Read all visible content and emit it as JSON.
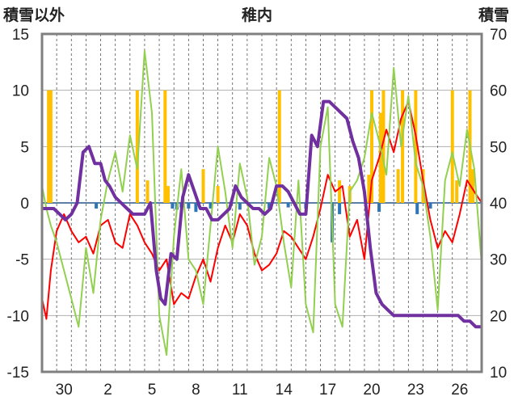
{
  "chart_data": {
    "type": "line",
    "title": "稚内",
    "ylabel_left": "積雪以外",
    "ylabel_right": "積雪",
    "x_tick_labels": [
      "30",
      "2",
      "5",
      "8",
      "11",
      "14",
      "17",
      "20",
      "23",
      "26"
    ],
    "x_range": [
      0,
      30
    ],
    "x_tick_positions": [
      1.5,
      4.5,
      7.5,
      10.5,
      13.5,
      16.5,
      19.5,
      22.5,
      25.5,
      28.5
    ],
    "ylim_left": [
      -15,
      15
    ],
    "yticks_left": [
      -15,
      -10,
      -5,
      0,
      5,
      10,
      15
    ],
    "ylim_right": [
      10,
      70
    ],
    "yticks_right": [
      10,
      20,
      30,
      40,
      50,
      60,
      70
    ],
    "grid": true,
    "series": [
      {
        "key": "precip_positive",
        "type": "bar",
        "axis": "left",
        "color": "#ffc000",
        "x": [
          0.45,
          0.6,
          6.5,
          7.2,
          8.4,
          8.6,
          11.0,
          12.0,
          16.2,
          20.3,
          21.0,
          22.3,
          22.5,
          23.1,
          23.3,
          24.3,
          24.6,
          25.5,
          26.0,
          28.0,
          28.3,
          29.2,
          29.4
        ],
        "values": [
          10,
          10,
          10,
          2.0,
          10,
          1.5,
          3.0,
          1.5,
          10,
          2.0,
          1.5,
          2.5,
          10,
          8.0,
          10,
          3.0,
          10,
          10,
          3.0,
          10,
          2.0,
          10,
          3.0
        ]
      },
      {
        "key": "negative_bars",
        "type": "bar",
        "axis": "left",
        "color": "#2e75b6",
        "x": [
          3.7,
          8.9,
          9.2,
          9.5,
          10.0,
          10.5,
          11.5,
          13.5,
          15.5,
          16.8,
          18.0,
          19.8,
          20.3,
          23.0,
          25.6,
          26.5
        ],
        "values": [
          -0.5,
          -0.5,
          -0.6,
          -0.4,
          -0.5,
          -0.8,
          -0.5,
          -0.6,
          -0.5,
          -0.4,
          -0.5,
          -3.5,
          -1.0,
          -0.8,
          -1.0,
          -0.5
        ]
      },
      {
        "key": "red_line",
        "type": "line",
        "axis": "left",
        "color": "#ff0000",
        "x": [
          0,
          0.3,
          0.6,
          1.0,
          1.5,
          2.0,
          2.5,
          3.0,
          3.5,
          4.0,
          4.5,
          5.0,
          5.5,
          6.0,
          6.5,
          7.0,
          7.5,
          8.0,
          8.5,
          9.0,
          9.5,
          10.0,
          10.5,
          11.0,
          11.5,
          12.0,
          12.5,
          13.0,
          13.5,
          14.0,
          14.5,
          15.0,
          15.5,
          16.0,
          16.5,
          17.0,
          17.5,
          18.0,
          18.5,
          19.0,
          19.5,
          20.0,
          20.5,
          21.0,
          21.5,
          22.0,
          22.5,
          23.0,
          23.5,
          24.0,
          24.5,
          25.0,
          25.5,
          26.0,
          26.5,
          27.0,
          27.5,
          28.0,
          28.5,
          29.0,
          29.5,
          30.0
        ],
        "values": [
          -8.5,
          -10.3,
          -6.0,
          -2.5,
          -1.0,
          -2.5,
          -3.5,
          -3.0,
          -4.5,
          -2.0,
          -1.5,
          -3.5,
          -4.0,
          -1.0,
          -2.0,
          -3.5,
          -4.5,
          -6.0,
          -5.0,
          -9.0,
          -8.0,
          -8.5,
          -6.5,
          -5.0,
          -7.0,
          -4.0,
          -2.0,
          -3.5,
          -1.0,
          -2.0,
          -4.5,
          -6.0,
          -5.5,
          -4.5,
          -2.5,
          -3.0,
          -4.0,
          -5.0,
          -3.0,
          -0.5,
          2.5,
          1.0,
          1.5,
          -3.0,
          -1.5,
          -5.0,
          2.0,
          4.0,
          6.5,
          4.5,
          7.5,
          9.0,
          6.0,
          2.0,
          -1.5,
          -4.0,
          -2.5,
          -3.5,
          -1.0,
          2.0,
          1.0,
          0.0
        ]
      },
      {
        "key": "green_line",
        "type": "line",
        "axis": "left",
        "color": "#92d050",
        "x": [
          0,
          0.3,
          0.6,
          1.0,
          1.5,
          2.0,
          2.5,
          3.0,
          3.5,
          4.0,
          4.5,
          5.0,
          5.5,
          6.0,
          6.5,
          7.0,
          7.5,
          8.0,
          8.5,
          9.0,
          9.5,
          10.0,
          10.5,
          11.0,
          11.5,
          12.0,
          12.5,
          13.0,
          13.5,
          14.0,
          14.5,
          15.0,
          15.5,
          16.0,
          16.5,
          17.0,
          17.5,
          18.0,
          18.5,
          19.0,
          19.5,
          20.0,
          20.5,
          21.0,
          21.5,
          22.0,
          22.5,
          23.0,
          23.5,
          24.0,
          24.5,
          25.0,
          25.5,
          26.0,
          26.5,
          27.0,
          27.5,
          28.0,
          28.5,
          29.0,
          29.5,
          30.0
        ],
        "values": [
          1.5,
          -0.5,
          -2.0,
          -3.5,
          -6.0,
          -8.5,
          -11.0,
          -4.0,
          -8.0,
          -1.5,
          2.0,
          4.5,
          1.0,
          6.0,
          3.0,
          13.5,
          8.0,
          -10.0,
          -13.5,
          -3.0,
          3.0,
          -5.0,
          -6.0,
          -9.0,
          -2.0,
          5.0,
          1.0,
          -4.0,
          3.5,
          0.5,
          -5.5,
          -3.0,
          4.0,
          1.5,
          -3.5,
          -7.5,
          2.0,
          -9.0,
          -11.5,
          5.0,
          8.5,
          -9.0,
          -11.0,
          1.0,
          2.0,
          4.0,
          8.0,
          5.5,
          2.5,
          12.0,
          5.0,
          9.5,
          3.5,
          1.5,
          -3.0,
          -9.5,
          2.0,
          4.5,
          1.5,
          6.5,
          3.0,
          -5.5
        ]
      },
      {
        "key": "purple_line",
        "type": "line",
        "axis": "right",
        "color": "#7030a0",
        "x": [
          0,
          0.8,
          1.2,
          1.6,
          2.0,
          2.4,
          2.8,
          3.2,
          3.6,
          4.0,
          4.3,
          4.6,
          5.0,
          5.4,
          5.8,
          6.2,
          6.6,
          7.0,
          7.4,
          7.8,
          8.1,
          8.4,
          8.8,
          9.2,
          9.6,
          10.0,
          10.4,
          10.8,
          11.2,
          11.6,
          12.0,
          12.4,
          12.8,
          13.2,
          13.6,
          14.0,
          14.4,
          14.8,
          15.2,
          15.6,
          16.0,
          16.4,
          16.8,
          17.2,
          17.6,
          18.0,
          18.4,
          18.8,
          19.2,
          19.6,
          20.0,
          20.4,
          20.8,
          21.2,
          21.6,
          22.0,
          22.4,
          22.8,
          23.2,
          23.6,
          24.0,
          24.4,
          24.8,
          25.2,
          25.6,
          26.0,
          26.4,
          26.8,
          27.2,
          27.6,
          28.0,
          28.4,
          28.8,
          29.2,
          29.6,
          30.0
        ],
        "values": [
          39,
          39,
          38,
          37,
          38,
          40,
          49,
          50,
          47,
          47,
          44,
          43,
          41,
          40,
          39,
          38,
          38,
          38,
          40,
          28,
          23,
          22,
          31,
          30,
          41,
          45,
          42,
          39,
          39,
          37,
          37,
          38,
          39,
          43,
          41,
          40,
          39,
          39,
          38,
          39,
          43,
          43,
          42,
          40,
          38,
          38,
          52,
          50,
          58,
          58,
          57,
          56,
          55,
          51,
          48,
          42,
          32,
          24,
          22,
          21,
          20,
          20,
          20,
          20,
          20,
          20,
          20,
          20,
          20,
          20,
          20,
          20,
          19,
          19,
          18,
          18
        ]
      }
    ]
  }
}
